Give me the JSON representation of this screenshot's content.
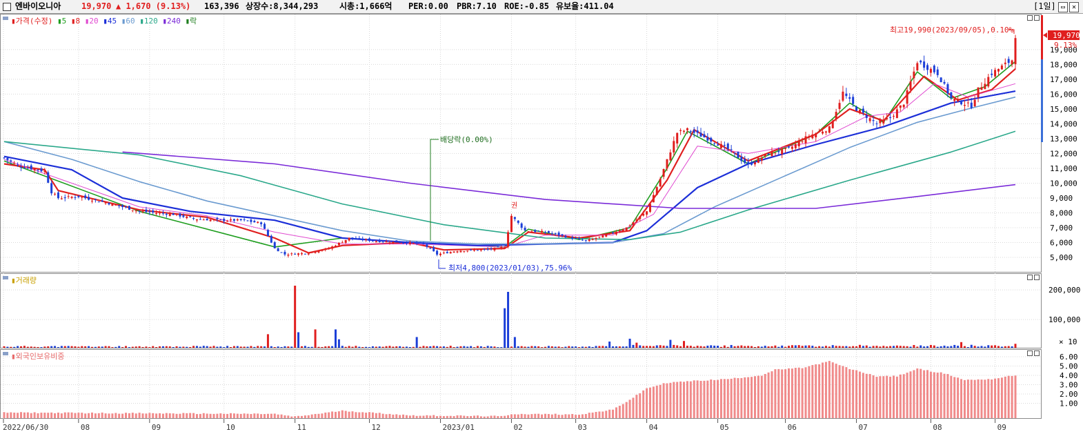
{
  "header": {
    "stock_name": "엔바이오니아",
    "price": "19,970",
    "change": "▲ 1,670 (9.13%)",
    "volume": "163,396",
    "listed": "상장수:8,344,293",
    "mktcap": "시총:1,666억",
    "per": "PER:0.00",
    "pbr": "PBR:7.10",
    "roe": "ROE:-0.85",
    "float_ratio": "유보율:411.04",
    "period": "[1일]",
    "restore_icon": "restore-icon",
    "close_icon": "close-icon"
  },
  "legend": {
    "price_label": "가격(수정)",
    "ma": [
      {
        "label": "5",
        "color": "#1f9e1f"
      },
      {
        "label": "8",
        "color": "#e02020"
      },
      {
        "label": "20",
        "color": "#e04ad0"
      },
      {
        "label": "45",
        "color": "#1c2fd8"
      },
      {
        "label": "60",
        "color": "#6b9bd0"
      },
      {
        "label": "120",
        "color": "#2aa88a"
      },
      {
        "label": "240",
        "color": "#7a2ad8"
      }
    ],
    "dividend_label": "락",
    "volume_label": "거래량",
    "foreign_label": "외국인보유비중"
  },
  "annotations": {
    "high": "최고19,990(2023/09/05),0.10%",
    "low": "최저4,800(2023/01/03),75.96%",
    "dividend": "배당락(0.00%)",
    "rights_mark": "권",
    "current_price": "19,970",
    "current_change": "9.13%",
    "vol_unit": "× 10"
  },
  "chart_data": [
    {
      "type": "candlestick",
      "title": "가격(수정)",
      "ylim": [
        4200,
        19990
      ],
      "y_ticks": [
        "5,000",
        "6,000",
        "7,000",
        "8,000",
        "9,000",
        "10,000",
        "11,000",
        "12,000",
        "13,000",
        "14,000",
        "15,000",
        "16,000",
        "17,000",
        "18,000",
        "19,000"
      ],
      "x_ticks": [
        "2022/06/30",
        "08",
        "09",
        "10",
        "11",
        "12",
        "2023/01",
        "02",
        "03",
        "04",
        "05",
        "06",
        "07",
        "08",
        "09"
      ],
      "close_anchors": [
        {
          "d": 0,
          "v": 11700
        },
        {
          "d": 4,
          "v": 11200
        },
        {
          "d": 8,
          "v": 11000
        },
        {
          "d": 12,
          "v": 10800
        },
        {
          "d": 14,
          "v": 9400
        },
        {
          "d": 16,
          "v": 9000
        },
        {
          "d": 22,
          "v": 9100
        },
        {
          "d": 30,
          "v": 8700
        },
        {
          "d": 40,
          "v": 8100
        },
        {
          "d": 50,
          "v": 7900
        },
        {
          "d": 56,
          "v": 7600
        },
        {
          "d": 64,
          "v": 7500
        },
        {
          "d": 70,
          "v": 7500
        },
        {
          "d": 76,
          "v": 7300
        },
        {
          "d": 80,
          "v": 5600
        },
        {
          "d": 83,
          "v": 5200
        },
        {
          "d": 90,
          "v": 5300
        },
        {
          "d": 96,
          "v": 5600
        },
        {
          "d": 102,
          "v": 6300
        },
        {
          "d": 110,
          "v": 6100
        },
        {
          "d": 118,
          "v": 6000
        },
        {
          "d": 124,
          "v": 5900
        },
        {
          "d": 128,
          "v": 5200
        },
        {
          "d": 134,
          "v": 5450
        },
        {
          "d": 142,
          "v": 5500
        },
        {
          "d": 148,
          "v": 5700
        },
        {
          "d": 150,
          "v": 7800
        },
        {
          "d": 154,
          "v": 6800
        },
        {
          "d": 160,
          "v": 6700
        },
        {
          "d": 166,
          "v": 6400
        },
        {
          "d": 172,
          "v": 6100
        },
        {
          "d": 178,
          "v": 6500
        },
        {
          "d": 184,
          "v": 7000
        },
        {
          "d": 190,
          "v": 8100
        },
        {
          "d": 194,
          "v": 10300
        },
        {
          "d": 199,
          "v": 13400
        },
        {
          "d": 202,
          "v": 13600
        },
        {
          "d": 208,
          "v": 13000
        },
        {
          "d": 214,
          "v": 12300
        },
        {
          "d": 220,
          "v": 11200
        },
        {
          "d": 226,
          "v": 12000
        },
        {
          "d": 232,
          "v": 12300
        },
        {
          "d": 238,
          "v": 13200
        },
        {
          "d": 244,
          "v": 13700
        },
        {
          "d": 248,
          "v": 16100
        },
        {
          "d": 252,
          "v": 15000
        },
        {
          "d": 258,
          "v": 14000
        },
        {
          "d": 262,
          "v": 14400
        },
        {
          "d": 266,
          "v": 15400
        },
        {
          "d": 270,
          "v": 18200
        },
        {
          "d": 276,
          "v": 17400
        },
        {
          "d": 280,
          "v": 15700
        },
        {
          "d": 286,
          "v": 15200
        },
        {
          "d": 288,
          "v": 16300
        },
        {
          "d": 292,
          "v": 17400
        },
        {
          "d": 298,
          "v": 18300
        },
        {
          "d": 299,
          "v": 19970
        }
      ],
      "ma_series": [
        {
          "name": "5",
          "color": "#1f9e1f",
          "points": [
            [
              0,
              11500
            ],
            [
              40,
              8100
            ],
            [
              80,
              5700
            ],
            [
              100,
              6300
            ],
            [
              120,
              6000
            ],
            [
              148,
              5700
            ],
            [
              155,
              6900
            ],
            [
              170,
              6200
            ],
            [
              185,
              7000
            ],
            [
              196,
              11000
            ],
            [
              202,
              13500
            ],
            [
              220,
              11300
            ],
            [
              240,
              13300
            ],
            [
              250,
              15400
            ],
            [
              260,
              14100
            ],
            [
              270,
              17500
            ],
            [
              280,
              15700
            ],
            [
              290,
              16500
            ],
            [
              299,
              18200
            ]
          ]
        },
        {
          "name": "8",
          "color": "#e02020",
          "points": [
            [
              0,
              11300
            ],
            [
              12,
              10900
            ],
            [
              16,
              9500
            ],
            [
              40,
              8200
            ],
            [
              60,
              7700
            ],
            [
              80,
              6300
            ],
            [
              90,
              5300
            ],
            [
              100,
              5800
            ],
            [
              120,
              6000
            ],
            [
              130,
              5500
            ],
            [
              148,
              5600
            ],
            [
              155,
              6700
            ],
            [
              170,
              6300
            ],
            [
              185,
              6800
            ],
            [
              196,
              10200
            ],
            [
              204,
              13600
            ],
            [
              220,
              11500
            ],
            [
              240,
              13300
            ],
            [
              250,
              15000
            ],
            [
              260,
              14200
            ],
            [
              272,
              17200
            ],
            [
              282,
              15600
            ],
            [
              292,
              16300
            ],
            [
              299,
              17700
            ]
          ]
        },
        {
          "name": "20",
          "color": "#e04ad0",
          "points": [
            [
              0,
              11600
            ],
            [
              20,
              10000
            ],
            [
              40,
              8400
            ],
            [
              60,
              7800
            ],
            [
              80,
              6700
            ],
            [
              100,
              5900
            ],
            [
              120,
              5900
            ],
            [
              148,
              5700
            ],
            [
              160,
              6500
            ],
            [
              180,
              6500
            ],
            [
              192,
              7900
            ],
            [
              205,
              12500
            ],
            [
              220,
              12000
            ],
            [
              240,
              12800
            ],
            [
              255,
              14500
            ],
            [
              265,
              14800
            ],
            [
              275,
              16700
            ],
            [
              285,
              15800
            ],
            [
              299,
              16700
            ]
          ]
        },
        {
          "name": "45",
          "color": "#1c2fd8",
          "points": [
            [
              0,
              11800
            ],
            [
              20,
              10900
            ],
            [
              35,
              9000
            ],
            [
              55,
              8100
            ],
            [
              80,
              7500
            ],
            [
              100,
              6300
            ],
            [
              120,
              6000
            ],
            [
              140,
              5800
            ],
            [
              160,
              5900
            ],
            [
              180,
              6000
            ],
            [
              190,
              6800
            ],
            [
              205,
              9700
            ],
            [
              220,
              11300
            ],
            [
              240,
              12600
            ],
            [
              260,
              13800
            ],
            [
              280,
              15400
            ],
            [
              299,
              16200
            ]
          ]
        },
        {
          "name": "60",
          "color": "#6b9bd0",
          "points": [
            [
              0,
              12800
            ],
            [
              20,
              11600
            ],
            [
              40,
              10100
            ],
            [
              60,
              8800
            ],
            [
              80,
              7800
            ],
            [
              100,
              6800
            ],
            [
              120,
              6100
            ],
            [
              140,
              5900
            ],
            [
              160,
              5900
            ],
            [
              180,
              6000
            ],
            [
              195,
              6600
            ],
            [
              210,
              8400
            ],
            [
              230,
              10400
            ],
            [
              250,
              12400
            ],
            [
              270,
              14100
            ],
            [
              285,
              15000
            ],
            [
              299,
              15800
            ]
          ]
        },
        {
          "name": "120",
          "color": "#2aa88a",
          "points": [
            [
              0,
              12800
            ],
            [
              40,
              11900
            ],
            [
              70,
              10500
            ],
            [
              100,
              8600
            ],
            [
              130,
              7200
            ],
            [
              160,
              6300
            ],
            [
              185,
              6200
            ],
            [
              200,
              6700
            ],
            [
              220,
              8200
            ],
            [
              250,
              10200
            ],
            [
              280,
              12100
            ],
            [
              299,
              13500
            ]
          ]
        },
        {
          "name": "240",
          "color": "#7a2ad8",
          "points": [
            [
              35,
              12100
            ],
            [
              80,
              11300
            ],
            [
              120,
              10000
            ],
            [
              160,
              8900
            ],
            [
              200,
              8300
            ],
            [
              240,
              8300
            ],
            [
              270,
              9100
            ],
            [
              299,
              9900
            ]
          ]
        }
      ]
    },
    {
      "type": "bar",
      "title": "거래량",
      "unit": "× 10",
      "y_ticks": [
        "100,000",
        "200,000"
      ],
      "ylim": [
        0,
        240000
      ],
      "spikes": [
        {
          "d": 30,
          "v": 6000
        },
        {
          "d": 78,
          "v": 48000
        },
        {
          "d": 86,
          "v": 220000
        },
        {
          "d": 87,
          "v": 55000
        },
        {
          "d": 92,
          "v": 65000
        },
        {
          "d": 98,
          "v": 65000
        },
        {
          "d": 99,
          "v": 30000
        },
        {
          "d": 122,
          "v": 38000
        },
        {
          "d": 148,
          "v": 140000
        },
        {
          "d": 149,
          "v": 198000
        },
        {
          "d": 151,
          "v": 38000
        },
        {
          "d": 179,
          "v": 22000
        },
        {
          "d": 185,
          "v": 32000
        },
        {
          "d": 187,
          "v": 18000
        },
        {
          "d": 197,
          "v": 28000
        },
        {
          "d": 201,
          "v": 24000
        },
        {
          "d": 283,
          "v": 20000
        },
        {
          "d": 299,
          "v": 14000
        }
      ]
    },
    {
      "type": "bar",
      "title": "외국인보유비중",
      "y_ticks": [
        "1.00",
        "2.00",
        "3.00",
        "4.00",
        "5.00",
        "6.00"
      ],
      "ylim": [
        0,
        7
      ],
      "anchors": [
        {
          "d": 0,
          "v": 0.6
        },
        {
          "d": 80,
          "v": 0.45
        },
        {
          "d": 86,
          "v": 0.15
        },
        {
          "d": 100,
          "v": 0.8
        },
        {
          "d": 120,
          "v": 0.3
        },
        {
          "d": 148,
          "v": 0.2
        },
        {
          "d": 150,
          "v": 0.45
        },
        {
          "d": 170,
          "v": 0.4
        },
        {
          "d": 180,
          "v": 0.9
        },
        {
          "d": 186,
          "v": 2.2
        },
        {
          "d": 190,
          "v": 3.2
        },
        {
          "d": 196,
          "v": 3.8
        },
        {
          "d": 204,
          "v": 4.0
        },
        {
          "d": 214,
          "v": 4.2
        },
        {
          "d": 224,
          "v": 4.6
        },
        {
          "d": 228,
          "v": 5.2
        },
        {
          "d": 236,
          "v": 5.4
        },
        {
          "d": 244,
          "v": 6.1
        },
        {
          "d": 250,
          "v": 5.3
        },
        {
          "d": 258,
          "v": 4.5
        },
        {
          "d": 264,
          "v": 4.5
        },
        {
          "d": 270,
          "v": 5.3
        },
        {
          "d": 278,
          "v": 4.8
        },
        {
          "d": 284,
          "v": 4.1
        },
        {
          "d": 292,
          "v": 4.2
        },
        {
          "d": 299,
          "v": 4.6
        }
      ]
    }
  ]
}
